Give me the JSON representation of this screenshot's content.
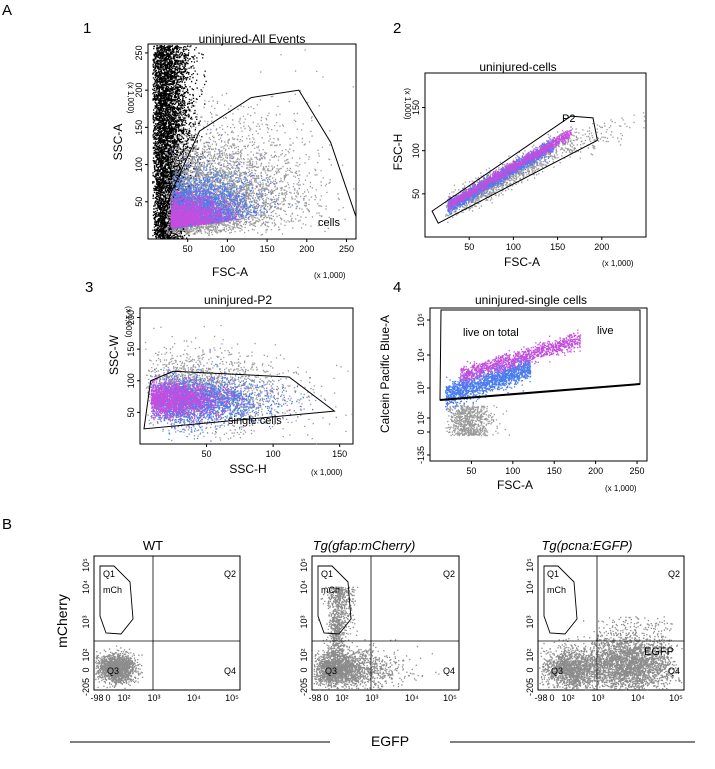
{
  "figure": {
    "panel_A_label": "A",
    "panel_B_label": "B",
    "mult_label": "(x 1,000)",
    "common_x_label": "EGFP",
    "common_y_label": "mCherry"
  },
  "chart_data": [
    {
      "type": "scatter",
      "id": "A1",
      "number": "1",
      "title": "uninjured-All Events",
      "xlabel": "FSC-A",
      "ylabel": "SSC-A",
      "x_ticks": [
        "50",
        "100",
        "150",
        "200",
        "250"
      ],
      "y_ticks": [
        "50",
        "100",
        "150",
        "200",
        "250"
      ],
      "xlim": [
        0,
        262
      ],
      "ylim": [
        0,
        262
      ],
      "x_unit": "(x 1,000)",
      "y_unit": "(x 1,000)",
      "gate_label": "cells",
      "gate_polygon": [
        [
          20,
          20
        ],
        [
          28,
          60
        ],
        [
          65,
          145
        ],
        [
          130,
          190
        ],
        [
          190,
          200
        ],
        [
          230,
          130
        ],
        [
          262,
          30
        ],
        [
          262,
          0
        ],
        [
          20,
          0
        ]
      ],
      "colors": {
        "events": "#000000",
        "gated": "#9a9a9a",
        "core": "#4a7cf0",
        "dense": "#c44ddf"
      }
    },
    {
      "type": "scatter",
      "id": "A2",
      "number": "2",
      "title": "uninjured-cells",
      "xlabel": "FSC-A",
      "ylabel": "FSC-H",
      "x_ticks": [
        "50",
        "100",
        "150",
        "200"
      ],
      "y_ticks": [
        "50",
        "100",
        "150"
      ],
      "xlim": [
        0,
        250
      ],
      "ylim": [
        0,
        190
      ],
      "x_unit": "(x 1,000)",
      "y_unit": "(x 1,000)",
      "gate_label": "P2",
      "gate_polygon": [
        [
          8,
          30
        ],
        [
          15,
          16
        ],
        [
          195,
          112
        ],
        [
          190,
          138
        ],
        [
          165,
          140
        ]
      ],
      "colors": {
        "events": "#9a9a9a",
        "core": "#4a7cf0",
        "dense": "#c44ddf"
      }
    },
    {
      "type": "scatter",
      "id": "A3",
      "number": "3",
      "title": "uninjured-P2",
      "xlabel": "SSC-H",
      "ylabel": "SSC-W",
      "x_ticks": [
        "50",
        "100",
        "150"
      ],
      "y_ticks": [
        "50",
        "100",
        "150",
        "200"
      ],
      "xlim": [
        0,
        160
      ],
      "ylim": [
        0,
        215
      ],
      "x_unit": "(x 1,000)",
      "y_unit": "(x 1,000)",
      "gate_label": "single cells",
      "gate_polygon": [
        [
          3,
          24
        ],
        [
          8,
          100
        ],
        [
          25,
          115
        ],
        [
          112,
          106
        ],
        [
          146,
          52
        ],
        [
          3,
          24
        ]
      ],
      "colors": {
        "events": "#9a9a9a",
        "core": "#4a7cf0",
        "dense": "#c44ddf"
      }
    },
    {
      "type": "scatter",
      "id": "A4",
      "number": "4",
      "title": "uninjured-single cells",
      "xlabel": "FSC-A",
      "ylabel": "Calcein Pacific Blue-A",
      "x_ticks": [
        "50",
        "100",
        "150",
        "200",
        "250"
      ],
      "y_ticks": [
        "-135",
        "0",
        "10²",
        "10³",
        "10⁴",
        "10⁵"
      ],
      "xlim": [
        0,
        262
      ],
      "x_unit": "(x 1,000)",
      "gate_label_inner": "live on total",
      "gate_label_outer": "live",
      "colors": {
        "events": "#9a9a9a",
        "core": "#4a7cf0",
        "dense": "#c44ddf"
      }
    },
    {
      "type": "scatter",
      "id": "B1",
      "title": "WT",
      "title_italic": false,
      "x_ticks": [
        "-98",
        "0",
        "10²",
        "10³",
        "10⁴",
        "10⁵"
      ],
      "y_ticks": [
        "-205",
        "0",
        "10²",
        "10³",
        "10⁴",
        "10⁵"
      ],
      "quadrants": [
        "Q1",
        "Q2",
        "Q3",
        "Q4"
      ],
      "gate_label": "mCh",
      "extra_label": "",
      "color": "#8c8c8c"
    },
    {
      "type": "scatter",
      "id": "B2",
      "title": "Tg(gfap:mCherry)",
      "title_italic": true,
      "x_ticks": [
        "-98",
        "0",
        "10²",
        "10³",
        "10⁴",
        "10⁵"
      ],
      "y_ticks": [
        "-205",
        "0",
        "10²",
        "10³",
        "10⁴",
        "10⁵"
      ],
      "quadrants": [
        "Q1",
        "Q2",
        "Q3",
        "Q4"
      ],
      "gate_label": "mCh",
      "extra_label": "",
      "color": "#8c8c8c"
    },
    {
      "type": "scatter",
      "id": "B3",
      "title": "Tg(pcna:EGFP)",
      "title_italic": true,
      "x_ticks": [
        "-98",
        "0",
        "10²",
        "10³",
        "10⁴",
        "10⁵"
      ],
      "y_ticks": [
        "-205",
        "0",
        "10²",
        "10³",
        "10⁴",
        "10⁵"
      ],
      "quadrants": [
        "Q1",
        "Q2",
        "Q3",
        "Q4"
      ],
      "gate_label": "mCh",
      "extra_label": "EGFP",
      "color": "#8c8c8c"
    }
  ]
}
